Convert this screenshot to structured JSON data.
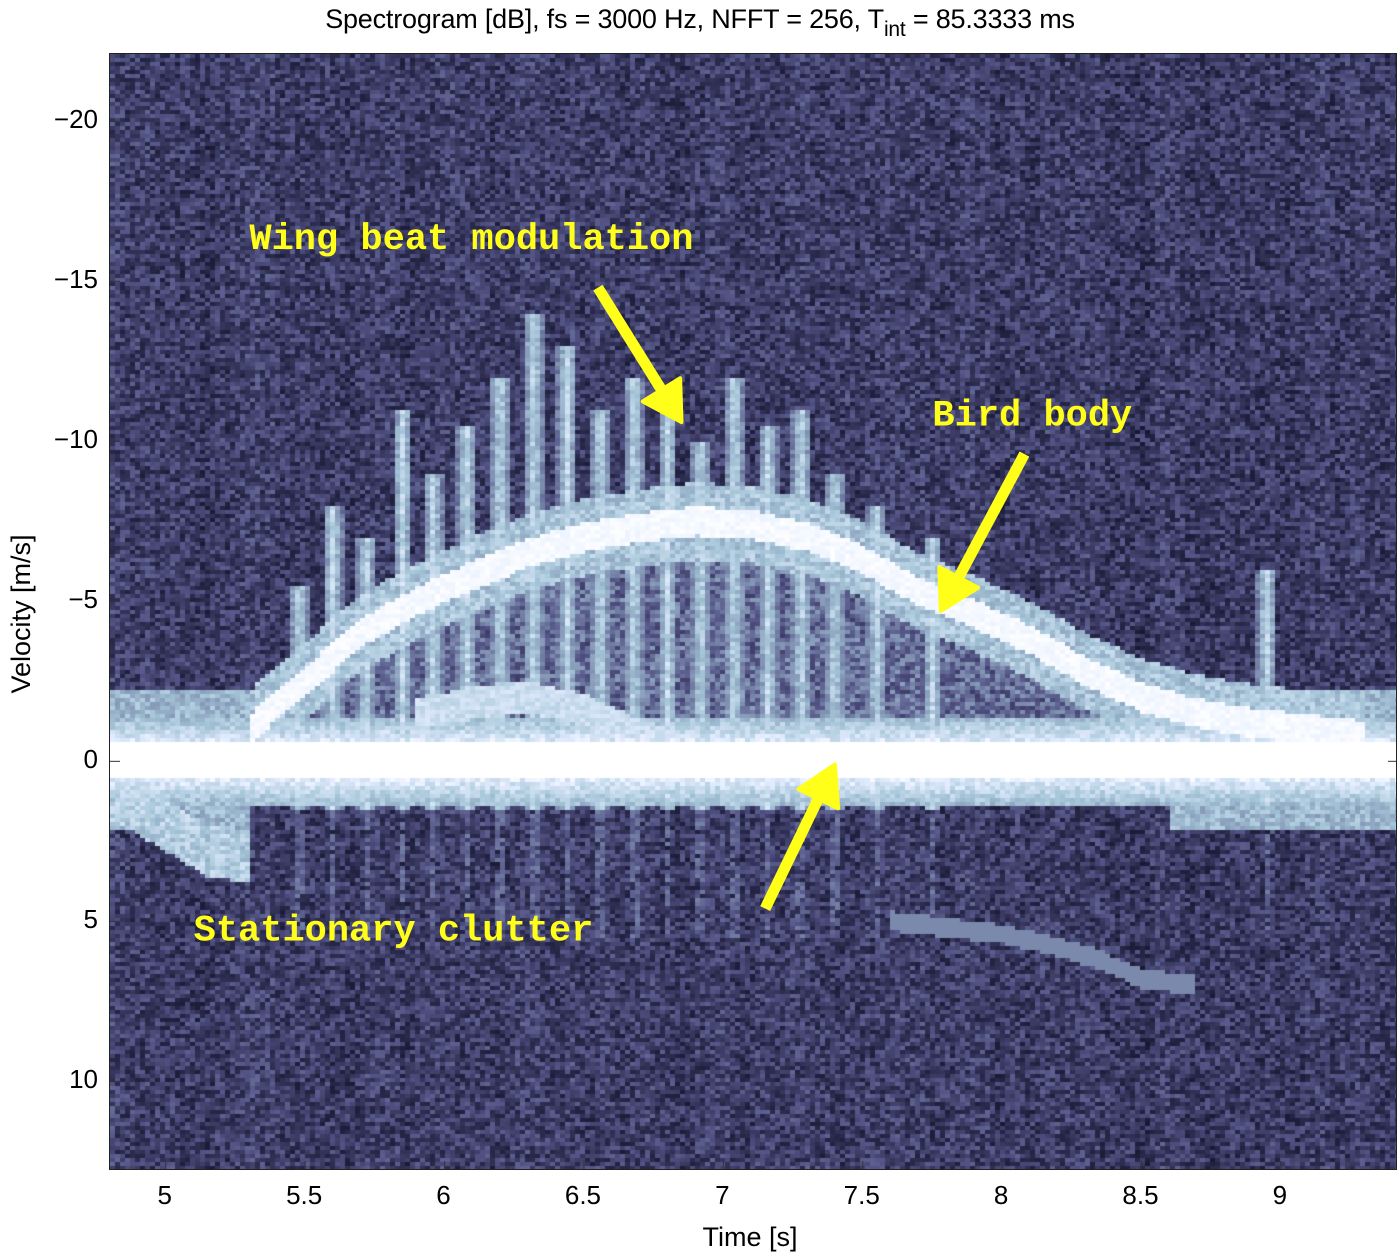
{
  "chart_data": {
    "type": "heatmap",
    "title": "Spectrogram [dB], fs = 3000 Hz, NFFT = 256, T",
    "title_subscript": "int",
    "title_suffix": " = 85.3333 ms",
    "xlabel": "Time [s]",
    "ylabel": "Velocity [m/s]",
    "xlim": [
      4.8,
      9.42
    ],
    "ylim": [
      -22.1,
      12.8
    ],
    "y_reversed": true,
    "grid": false,
    "colormap": "bone",
    "xticks": [
      5,
      5.5,
      6,
      6.5,
      7,
      7.5,
      8,
      8.5,
      9
    ],
    "xtick_labels": [
      "5",
      "5.5",
      "6",
      "6.5",
      "7",
      "7.5",
      "8",
      "8.5",
      "9"
    ],
    "yticks": [
      -20,
      -15,
      -10,
      -5,
      0,
      5,
      10
    ],
    "ytick_labels": [
      "−20",
      "−15",
      "−10",
      "−5",
      "0",
      "5",
      "10"
    ],
    "sampling": {
      "fs_hz": 3000,
      "nfft": 256,
      "t_int_ms": 85.3333
    },
    "features": {
      "stationary_clutter": {
        "velocity": 0,
        "t_range": [
          4.8,
          9.42
        ]
      },
      "bird_body_trace": {
        "t": [
          5.3,
          5.5,
          5.7,
          5.9,
          6.1,
          6.3,
          6.5,
          6.7,
          6.9,
          7.1,
          7.3,
          7.5,
          7.7,
          7.9,
          8.1,
          8.3,
          8.5,
          8.7,
          8.9,
          9.1,
          9.3
        ],
        "v": [
          -1.0,
          -2.5,
          -4.0,
          -5.0,
          -5.8,
          -6.5,
          -7.0,
          -7.3,
          -7.5,
          -7.4,
          -7.0,
          -6.3,
          -5.3,
          -4.6,
          -3.8,
          -2.8,
          -2.0,
          -1.5,
          -1.2,
          -1.0,
          -0.8
        ]
      },
      "lower_body_trace": {
        "t": [
          5.9,
          6.1,
          6.3,
          6.5,
          6.7,
          6.9
        ],
        "v": [
          -1.5,
          -1.8,
          -2.0,
          -1.6,
          -0.8,
          -0.3
        ]
      },
      "wing_beat_spikes": {
        "t": [
          5.48,
          5.6,
          5.72,
          5.85,
          5.96,
          6.08,
          6.2,
          6.32,
          6.44,
          6.56,
          6.68,
          6.8,
          6.92,
          7.04,
          7.16,
          7.28,
          7.4,
          7.55,
          7.75,
          8.95
        ],
        "v_peak": [
          -5.5,
          -8,
          -7,
          -11,
          -9,
          -10.5,
          -12,
          -14,
          -13,
          -11,
          -12,
          -11,
          -10,
          -12,
          -10.5,
          -11,
          -9,
          -8,
          -7,
          -6
        ]
      },
      "secondary_trace": {
        "t": [
          7.6,
          7.8,
          8.0,
          8.2,
          8.35,
          8.5,
          8.7
        ],
        "v": [
          5.0,
          5.2,
          5.4,
          5.8,
          6.2,
          6.8,
          7.0
        ]
      },
      "negative_spur": {
        "t": [
          4.8,
          5.0,
          5.15,
          5.3
        ],
        "v": [
          1.0,
          2.0,
          2.8,
          3.0
        ]
      }
    },
    "annotations": [
      {
        "text": "Wing beat modulation",
        "text_t": 5.3,
        "text_v": -16.0,
        "arrow_from": [
          6.55,
          -14.8
        ],
        "arrow_to": [
          6.85,
          -10.6
        ]
      },
      {
        "text": "Bird body",
        "text_t": 7.75,
        "text_v": -10.5,
        "arrow_from": [
          8.08,
          -9.6
        ],
        "arrow_to": [
          7.78,
          -4.7
        ]
      },
      {
        "text": "Stationary clutter",
        "text_t": 5.1,
        "text_v": 5.6,
        "arrow_from": [
          7.15,
          4.6
        ],
        "arrow_to": [
          7.4,
          0.1
        ]
      }
    ],
    "annotation_color": "#ffff1a"
  }
}
